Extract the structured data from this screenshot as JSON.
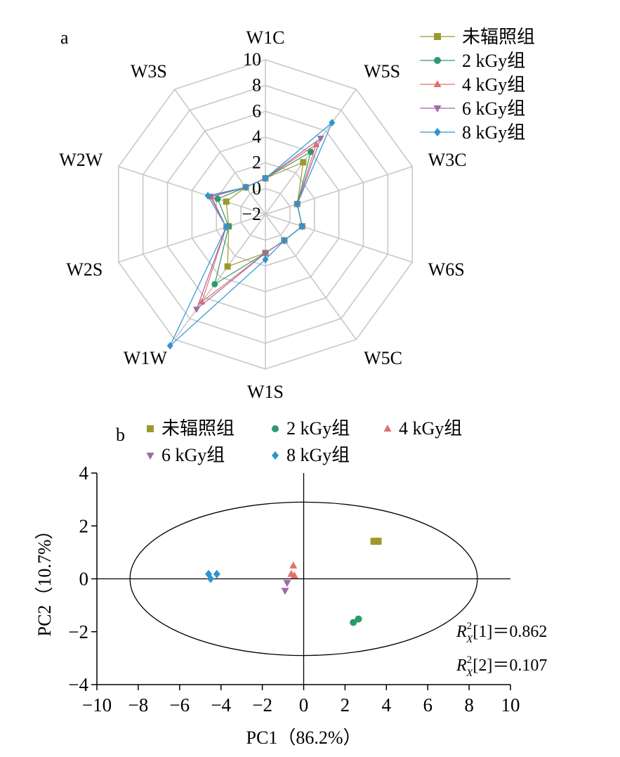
{
  "panel_a": {
    "label": "a",
    "legend": [
      "未辐照组",
      "2 kGy组",
      "4 kGy组",
      "6 kGy组",
      "8 kGy组"
    ]
  },
  "panel_b": {
    "label": "b",
    "legend": [
      "未辐照组",
      "2 kGy组",
      "4 kGy组",
      "6 kGy组",
      "8 kGy组"
    ],
    "annotations": [
      "R²X[1]=0.862",
      "R²X[2]=0.107"
    ]
  },
  "colors": {
    "untreated": "#9c9a2e",
    "kGy2": "#2e9a6c",
    "kGy4": "#e0716b",
    "kGy6": "#a06aa8",
    "kGy8": "#2f95cf",
    "grid": "#c8c8c8",
    "axis": "#000000"
  },
  "chart_data": [
    {
      "type": "radar",
      "axes": [
        "W1C",
        "W5S",
        "W3C",
        "W6S",
        "W5C",
        "W1S",
        "W1W",
        "W2S",
        "W2W",
        "W3S"
      ],
      "rmin": -2,
      "rmax": 10,
      "ticks": [
        -2,
        0,
        2,
        4,
        6,
        8,
        10
      ],
      "markers": [
        "square",
        "circle",
        "triangle-up",
        "triangle-down",
        "diamond"
      ],
      "series": [
        {
          "name": "未辐照组",
          "values": [
            0.8,
            3.0,
            0.6,
            1.0,
            0.5,
            1.0,
            3.0,
            1.0,
            1.2,
            0.6
          ]
        },
        {
          "name": "2 kGy组",
          "values": [
            0.8,
            4.0,
            0.6,
            1.0,
            0.5,
            1.0,
            4.7,
            1.0,
            1.9,
            0.6
          ]
        },
        {
          "name": "4 kGy组",
          "values": [
            0.8,
            4.7,
            0.6,
            1.0,
            0.5,
            1.0,
            6.4,
            1.2,
            2.4,
            0.6
          ]
        },
        {
          "name": "6 kGy组",
          "values": [
            0.8,
            5.3,
            0.6,
            1.0,
            0.5,
            1.0,
            7.1,
            1.2,
            2.5,
            0.6
          ]
        },
        {
          "name": "8 kGy组",
          "values": [
            0.8,
            6.8,
            0.6,
            1.0,
            0.5,
            1.5,
            10.6,
            1.2,
            2.7,
            0.6
          ]
        }
      ]
    },
    {
      "type": "scatter",
      "xlabel": "PC1（86.2%）",
      "ylabel": "PC2（10.7%）",
      "xlim": [
        -10,
        10
      ],
      "ylim": [
        -4,
        4
      ],
      "xticks": [
        -10,
        -8,
        -6,
        -4,
        -2,
        0,
        2,
        4,
        6,
        8,
        10
      ],
      "yticks": [
        -4,
        -2,
        0,
        2,
        4
      ],
      "ellipse": {
        "cx": 0,
        "cy": 0,
        "rx": 8.4,
        "ry": 2.9
      },
      "markers": [
        "square",
        "circle",
        "triangle-up",
        "triangle-down",
        "diamond"
      ],
      "series": [
        {
          "name": "未辐照组",
          "points": [
            [
              3.4,
              1.42
            ],
            [
              3.6,
              1.42
            ],
            [
              3.5,
              1.42
            ]
          ]
        },
        {
          "name": "2 kGy组",
          "points": [
            [
              2.4,
              -1.65
            ],
            [
              2.65,
              -1.52
            ]
          ]
        },
        {
          "name": "4 kGy组",
          "points": [
            [
              -0.5,
              0.5
            ],
            [
              -0.6,
              0.18
            ],
            [
              -0.45,
              0.12
            ]
          ]
        },
        {
          "name": "6 kGy组",
          "points": [
            [
              -0.8,
              -0.15
            ],
            [
              -0.9,
              -0.45
            ]
          ]
        },
        {
          "name": "8 kGy组",
          "points": [
            [
              -4.6,
              0.18
            ],
            [
              -4.5,
              0.0
            ],
            [
              -4.2,
              0.18
            ]
          ]
        }
      ]
    }
  ]
}
